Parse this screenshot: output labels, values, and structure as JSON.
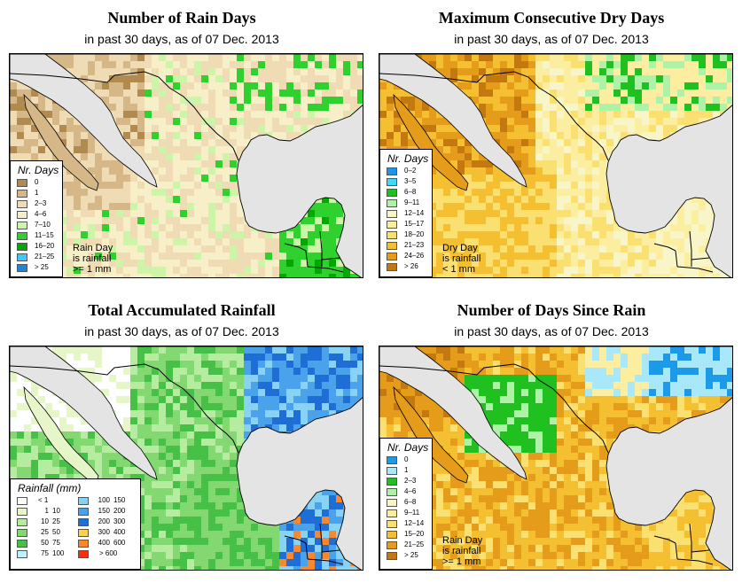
{
  "colors": {
    "land": "#f6efd0",
    "water": "#e4e4e4",
    "border": "#000000"
  },
  "panels": {
    "rain_days": {
      "title": "Number of Rain Days",
      "subtitle": "in past 30 days, as of  07 Dec. 2013",
      "legend": {
        "title": "Nr. Days",
        "items": [
          {
            "label": "0",
            "color": "#b08a4e"
          },
          {
            "label": "1",
            "color": "#d6b888"
          },
          {
            "label": "2–3",
            "color": "#f0dcb4"
          },
          {
            "label": "4–6",
            "color": "#f7efc8"
          },
          {
            "label": "7–10",
            "color": "#ccf5a8"
          },
          {
            "label": "11–15",
            "color": "#2ed12e"
          },
          {
            "label": "16–20",
            "color": "#00a800"
          },
          {
            "label": "21–25",
            "color": "#40c8f8"
          },
          {
            "label": "> 25",
            "color": "#1c88d4"
          }
        ]
      },
      "note": [
        "Rain Day",
        "is rainfall",
        ">= 1 mm"
      ]
    },
    "dry_days": {
      "title": "Maximum Consecutive Dry Days",
      "subtitle": "in past 30 days, as of  07 Dec. 2013",
      "legend": {
        "title": "Nr. Days",
        "items": [
          {
            "label": "0–2",
            "color": "#1c96e8"
          },
          {
            "label": "3–5",
            "color": "#40d8f8"
          },
          {
            "label": "6–8",
            "color": "#20c020"
          },
          {
            "label": "9–11",
            "color": "#aef2a8"
          },
          {
            "label": "12–14",
            "color": "#f8f6c8"
          },
          {
            "label": "15–17",
            "color": "#fbeea0"
          },
          {
            "label": "18–20",
            "color": "#fae070"
          },
          {
            "label": "21–23",
            "color": "#f4c032"
          },
          {
            "label": "24–26",
            "color": "#e49c1a"
          },
          {
            "label": "> 26",
            "color": "#c47810"
          }
        ]
      },
      "note": [
        "Dry Day",
        "is rainfall",
        "< 1 mm"
      ]
    },
    "total_rain": {
      "title": "Total Accumulated Rainfall",
      "subtitle": "in past 30 days, as of  07 Dec. 2013",
      "legend": {
        "title": "Rainfall (mm)",
        "left": [
          {
            "lo": "",
            "hi": "< 1",
            "color": "#ffffff"
          },
          {
            "lo": "1",
            "hi": "10",
            "color": "#e6f6c8"
          },
          {
            "lo": "10",
            "hi": "25",
            "color": "#b6eca0"
          },
          {
            "lo": "25",
            "hi": "50",
            "color": "#84d872"
          },
          {
            "lo": "50",
            "hi": "75",
            "color": "#46c046"
          },
          {
            "lo": "75",
            "hi": "100",
            "color": "#bff0ff"
          }
        ],
        "right": [
          {
            "lo": "100",
            "hi": "150",
            "color": "#88d2f4"
          },
          {
            "lo": "150",
            "hi": "200",
            "color": "#4aa2ea"
          },
          {
            "lo": "200",
            "hi": "300",
            "color": "#1e6ed6"
          },
          {
            "lo": "300",
            "hi": "400",
            "color": "#fcd050"
          },
          {
            "lo": "400",
            "hi": "600",
            "color": "#f8882e"
          },
          {
            "lo": "",
            "hi": "> 600",
            "color": "#f03010"
          }
        ]
      }
    },
    "since_rain": {
      "title": "Number of Days Since Rain",
      "subtitle": "in past 30 days, as of  07 Dec. 2013",
      "legend": {
        "title": "Nr. Days",
        "items": [
          {
            "label": "0",
            "color": "#1c9ae8"
          },
          {
            "label": "1",
            "color": "#a8e8f8"
          },
          {
            "label": "2–3",
            "color": "#20c020"
          },
          {
            "label": "4–6",
            "color": "#aef2a8"
          },
          {
            "label": "6–8",
            "color": "#f8f6c8"
          },
          {
            "label": "9–11",
            "color": "#fbeea0"
          },
          {
            "label": "12–14",
            "color": "#fae070"
          },
          {
            "label": "15–20",
            "color": "#f4c032"
          },
          {
            "label": "21–25",
            "color": "#e49c1a"
          },
          {
            "label": "> 25",
            "color": "#c47810"
          }
        ]
      },
      "note": [
        "Rain Day",
        "is rainfall",
        ">= 1 mm"
      ]
    }
  }
}
